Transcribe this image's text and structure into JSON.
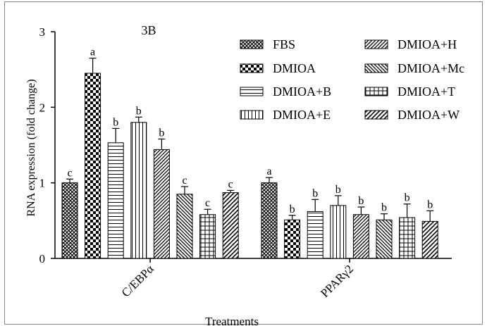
{
  "chart_data": {
    "type": "bar",
    "title": "3B",
    "xlabel": "Treatments",
    "ylabel": "RNA expression (fold change)",
    "ylim": [
      0,
      3
    ],
    "yticks": [
      "0",
      "1",
      "2",
      "3"
    ],
    "categories": [
      "C/EBPα",
      "PPARγ2"
    ],
    "legend_position": "top-right",
    "series": [
      {
        "name": "FBS",
        "pattern": "crosshatch",
        "values": [
          1.0,
          1.0
        ],
        "errors": [
          0.05,
          0.07
        ],
        "letters": [
          "c",
          "a"
        ]
      },
      {
        "name": "DMIOA",
        "pattern": "checker",
        "values": [
          2.45,
          0.51
        ],
        "errors": [
          0.2,
          0.06
        ],
        "letters": [
          "a",
          "b"
        ]
      },
      {
        "name": "DMIOA+B",
        "pattern": "horizontal",
        "values": [
          1.53,
          0.62
        ],
        "errors": [
          0.19,
          0.16
        ],
        "letters": [
          "b",
          "b"
        ]
      },
      {
        "name": "DMIOA+E",
        "pattern": "vertical",
        "values": [
          1.8,
          0.7
        ],
        "errors": [
          0.07,
          0.13
        ],
        "letters": [
          "b",
          "b"
        ]
      },
      {
        "name": "DMIOA+H",
        "pattern": "diagonal-up",
        "values": [
          1.44,
          0.58
        ],
        "errors": [
          0.14,
          0.1
        ],
        "letters": [
          "b",
          "b"
        ]
      },
      {
        "name": "DMIOA+Mc",
        "pattern": "diagonal-down",
        "values": [
          0.85,
          0.51
        ],
        "errors": [
          0.1,
          0.08
        ],
        "letters": [
          "c",
          "b"
        ]
      },
      {
        "name": "DMIOA+T",
        "pattern": "grid",
        "values": [
          0.58,
          0.54
        ],
        "errors": [
          0.07,
          0.18
        ],
        "letters": [
          "c",
          "b"
        ]
      },
      {
        "name": "DMIOA+W",
        "pattern": "zigzag",
        "values": [
          0.87,
          0.49
        ],
        "errors": [
          0.03,
          0.14
        ],
        "letters": [
          "c",
          "b"
        ]
      }
    ]
  }
}
